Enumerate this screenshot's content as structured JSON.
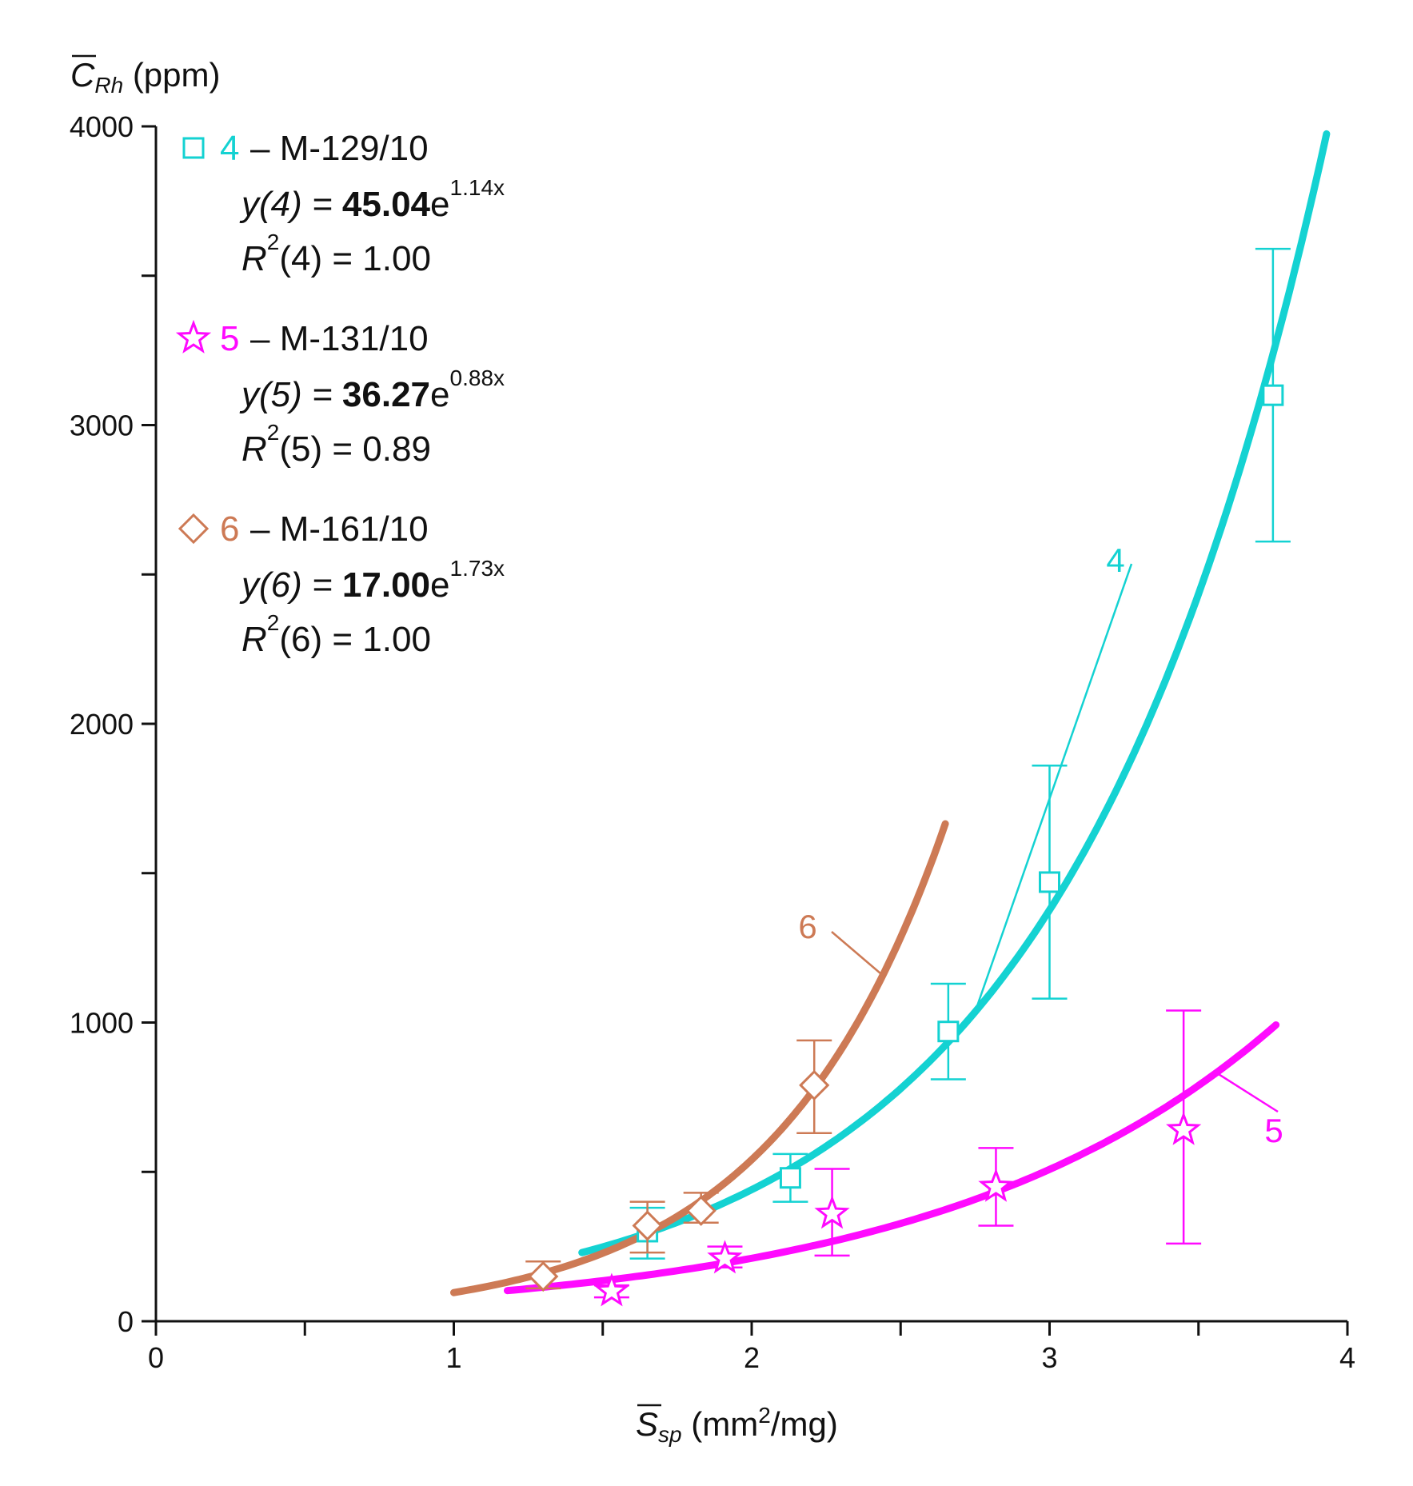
{
  "chart_data": {
    "type": "scatter",
    "title": "",
    "xlabel": {
      "symbol": "S",
      "subscript": "sp",
      "unit_prefix": "(mm",
      "unit_sup": "2",
      "unit_suffix": "/mg)"
    },
    "ylabel": {
      "symbol": "C",
      "subscript": "Rh",
      "unit": "(ppm)"
    },
    "xlim": [
      0,
      4
    ],
    "ylim": [
      0,
      4000
    ],
    "x_ticks": [
      {
        "value": 0,
        "label": "0"
      },
      {
        "value": 1,
        "label": "1"
      },
      {
        "value": 2,
        "label": "2"
      },
      {
        "value": 3,
        "label": "3"
      },
      {
        "value": 4,
        "label": "4"
      }
    ],
    "x_minor_ticks": [
      0.5,
      1.5,
      2.5,
      3.5
    ],
    "y_ticks": [
      {
        "value": 0,
        "label": "0"
      },
      {
        "value": 1000,
        "label": "1000"
      },
      {
        "value": 2000,
        "label": "2000"
      },
      {
        "value": 3000,
        "label": "3000"
      },
      {
        "value": 4000,
        "label": "4000"
      }
    ],
    "y_minor_ticks": [
      500,
      1500,
      2500,
      3500
    ],
    "series": [
      {
        "id": "4",
        "name": "M-129/10",
        "color": "#14d2d2",
        "marker": "square",
        "fit": {
          "a": 45.04,
          "b": 1.14,
          "x_range": [
            1.43,
            3.93
          ]
        },
        "equation": {
          "lhs": "y(4) = ",
          "coef": "45.04",
          "base": "e",
          "exp": "1.14x"
        },
        "r2": {
          "r": "R",
          "sup": "2",
          "rest": "(4) = 1.00"
        },
        "curve_label": "4",
        "points": [
          {
            "x": 1.65,
            "y": 300,
            "err_low": 210,
            "err_high": 380
          },
          {
            "x": 2.13,
            "y": 480,
            "err_low": 400,
            "err_high": 560
          },
          {
            "x": 2.66,
            "y": 970,
            "err_low": 810,
            "err_high": 1130
          },
          {
            "x": 3.0,
            "y": 1470,
            "err_low": 1080,
            "err_high": 1860
          },
          {
            "x": 3.75,
            "y": 3100,
            "err_low": 2610,
            "err_high": 3590
          }
        ]
      },
      {
        "id": "5",
        "name": "M-131/10",
        "color": "#ff0aff",
        "marker": "star",
        "fit": {
          "a": 36.27,
          "b": 0.88,
          "x_range": [
            1.18,
            3.76
          ]
        },
        "equation": {
          "lhs": "y(5) = ",
          "coef": "36.27",
          "base": "e",
          "exp": "0.88x"
        },
        "r2": {
          "r": "R",
          "sup": "2",
          "rest": "(5) = 0.89"
        },
        "curve_label": "5",
        "points": [
          {
            "x": 1.53,
            "y": 100,
            "err_low": 80,
            "err_high": 120
          },
          {
            "x": 1.91,
            "y": 210,
            "err_low": 180,
            "err_high": 250
          },
          {
            "x": 2.27,
            "y": 360,
            "err_low": 220,
            "err_high": 510
          },
          {
            "x": 2.82,
            "y": 450,
            "err_low": 320,
            "err_high": 580
          },
          {
            "x": 3.45,
            "y": 640,
            "err_low": 260,
            "err_high": 1040
          }
        ]
      },
      {
        "id": "6",
        "name": "M-161/10",
        "color": "#cd7a55",
        "marker": "diamond",
        "fit": {
          "a": 17.0,
          "b": 1.73,
          "x_range": [
            1.0,
            2.65
          ]
        },
        "equation": {
          "lhs": "y(6) = ",
          "coef": "17.00",
          "base": "e",
          "exp": "1.73x"
        },
        "r2": {
          "r": "R",
          "sup": "2",
          "rest": "(6) = 1.00"
        },
        "curve_label": "6",
        "points": [
          {
            "x": 1.3,
            "y": 150,
            "err_low": 110,
            "err_high": 200
          },
          {
            "x": 1.65,
            "y": 320,
            "err_low": 230,
            "err_high": 400
          },
          {
            "x": 1.83,
            "y": 370,
            "err_low": 330,
            "err_high": 430
          },
          {
            "x": 2.21,
            "y": 790,
            "err_low": 630,
            "err_high": 940
          }
        ]
      }
    ]
  }
}
